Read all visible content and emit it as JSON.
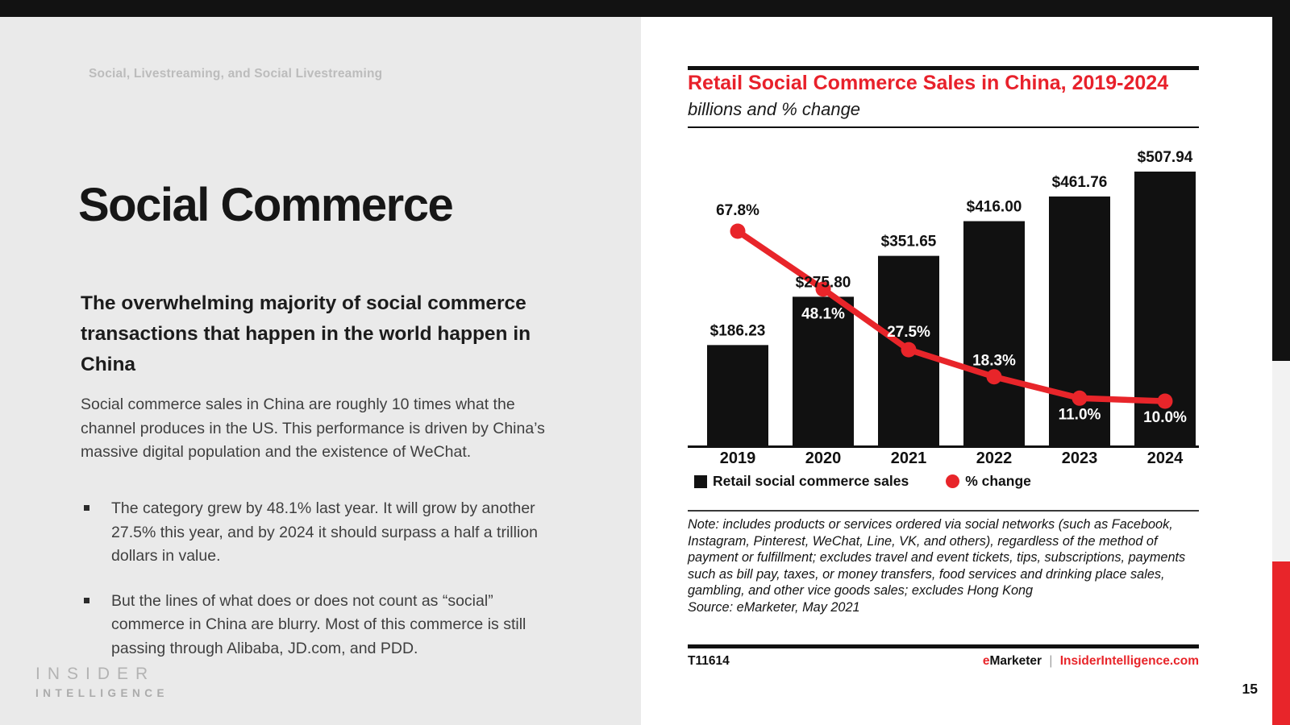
{
  "left": {
    "eyebrow": "Social, Livestreaming, and Social Livestreaming",
    "title": "Social Commerce",
    "subtitle": "The overwhelming majority of social commerce transactions that happen in the world happen in China",
    "paragraph": "Social commerce sales in China are roughly 10 times what the channel produces in the US. This performance is driven by China’s massive digital population and the existence of WeChat.",
    "bullets": [
      "The category grew by 48.1% last year. It will grow by another 27.5% this year, and by 2024 it should surpass a half a trillion dollars in value.",
      "But the lines of what does or does not count as “social” commerce in China are blurry. Most of this commerce is still passing through Alibaba, JD.com, and PDD."
    ],
    "logo_line1": "INSIDER",
    "logo_line2": "INTELLIGENCE"
  },
  "chart_panel": {
    "title": "Retail Social Commerce Sales in China, 2019-2024",
    "subtitle": "billions and % change",
    "legend": {
      "sales_label": "Retail social commerce sales",
      "pct_label": "% change"
    },
    "note": "Note: includes products or services ordered via social networks (such as Facebook, Instagram, Pinterest, WeChat, Line, VK, and others), regardless of the method of payment or fulfillment; excludes travel and event tickets, tips, subscriptions, payments such as bill pay, taxes, or money transfers, food services and drinking place sales, gambling, and other vice goods sales; excludes Hong Kong",
    "source": "Source: eMarketer, May 2021",
    "footer": {
      "id": "T11614",
      "brand_e": "e",
      "brand_marketer": "Marketer",
      "brand_sep": "|",
      "brand_site": "InsiderIntelligence.com"
    }
  },
  "page_number": "15",
  "colors": {
    "accent_red": "#e8252a",
    "bar_black": "#111111",
    "panel_gray": "#eaeaea"
  },
  "chart_data": {
    "type": "bar",
    "title": "Retail Social Commerce Sales in China, 2019-2024",
    "subtitle": "billions and % change",
    "categories": [
      "2019",
      "2020",
      "2021",
      "2022",
      "2023",
      "2024"
    ],
    "series": [
      {
        "name": "Retail social commerce sales",
        "type": "bar",
        "unit": "US$ billions",
        "values": [
          186.23,
          275.8,
          351.65,
          416.0,
          461.76,
          507.94
        ],
        "labels": [
          "$186.23",
          "$275.80",
          "$351.65",
          "$416.00",
          "$461.76",
          "$507.94"
        ],
        "color": "#111111"
      },
      {
        "name": "% change",
        "type": "line",
        "unit": "percent",
        "values": [
          67.8,
          48.1,
          27.5,
          18.3,
          11.0,
          10.0
        ],
        "labels": [
          "67.8%",
          "48.1%",
          "27.5%",
          "18.3%",
          "11.0%",
          "10.0%"
        ],
        "color": "#e8252a"
      }
    ],
    "legend_position": "bottom",
    "grid": false,
    "value_labels_shown": true
  }
}
